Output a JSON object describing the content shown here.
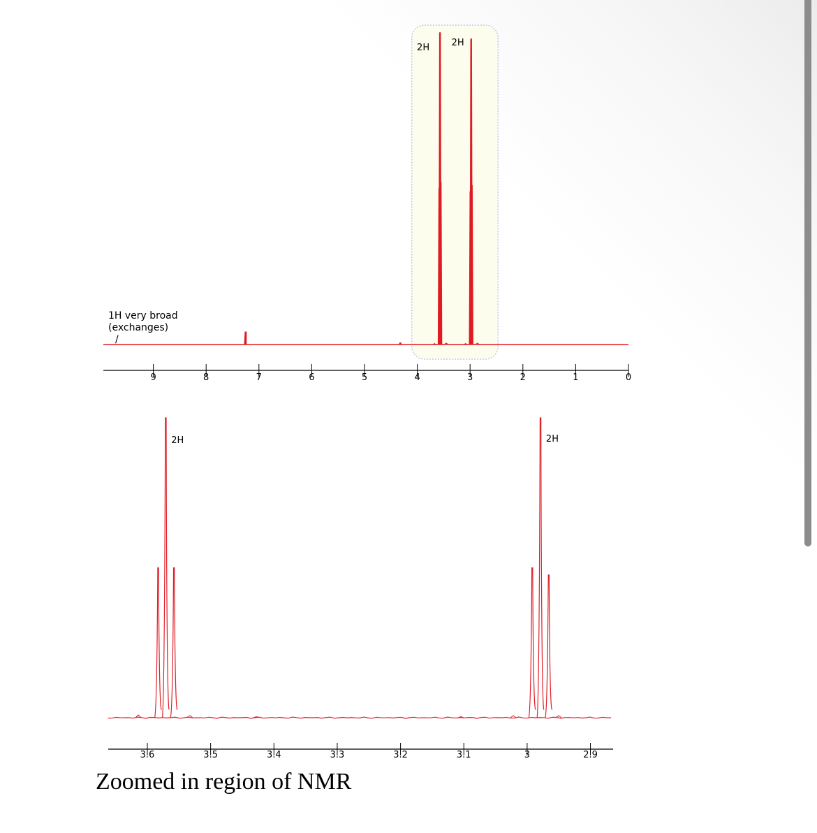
{
  "caption": "Zoomed in region of NMR",
  "colors": {
    "spectrum": "#e01b24",
    "highlight_fill": "#fdfdee",
    "highlight_border": "#a8a8e8"
  },
  "chart_data": [
    {
      "type": "line",
      "title": "",
      "xlabel": "",
      "ylabel": "",
      "xlim": [
        10,
        0
      ],
      "ticks": [
        "9",
        "8",
        "7",
        "6",
        "5",
        "4",
        "3",
        "2",
        "1",
        "0"
      ],
      "highlight_region_ppm": [
        3.0,
        3.6
      ],
      "peaks": [
        {
          "ppm": 7.26,
          "height": 0.04
        },
        {
          "ppm": 4.33,
          "height": 0.005
        },
        {
          "ppm": 3.57,
          "height": 1.0,
          "multiplicity": "triplet"
        },
        {
          "ppm": 2.98,
          "height": 0.98,
          "multiplicity": "triplet"
        }
      ],
      "annotations": [
        {
          "text": "2H",
          "ppm": 3.57
        },
        {
          "text": "2H",
          "ppm": 2.98
        },
        {
          "text": "1H very broad",
          "ppm": 9.4
        },
        {
          "text": "(exchanges)",
          "ppm": 9.4
        },
        {
          "text": "/",
          "ppm": 9.4
        }
      ]
    },
    {
      "type": "line",
      "title": "",
      "xlabel": "",
      "ylabel": "",
      "xlim": [
        3.66,
        2.86
      ],
      "ticks": [
        "3.6",
        "3.5",
        "3.4",
        "3.3",
        "3.2",
        "3.1",
        "3",
        "2.9"
      ],
      "peaks": [
        {
          "ppm": 3.583,
          "height": 0.42
        },
        {
          "ppm": 3.571,
          "height": 0.84
        },
        {
          "ppm": 3.558,
          "height": 0.42
        },
        {
          "ppm": 2.992,
          "height": 0.42
        },
        {
          "ppm": 2.979,
          "height": 0.84
        },
        {
          "ppm": 2.966,
          "height": 0.4
        }
      ],
      "annotations": [
        {
          "text": "2H",
          "ppm": 3.571
        },
        {
          "text": "2H",
          "ppm": 2.979
        }
      ]
    }
  ]
}
